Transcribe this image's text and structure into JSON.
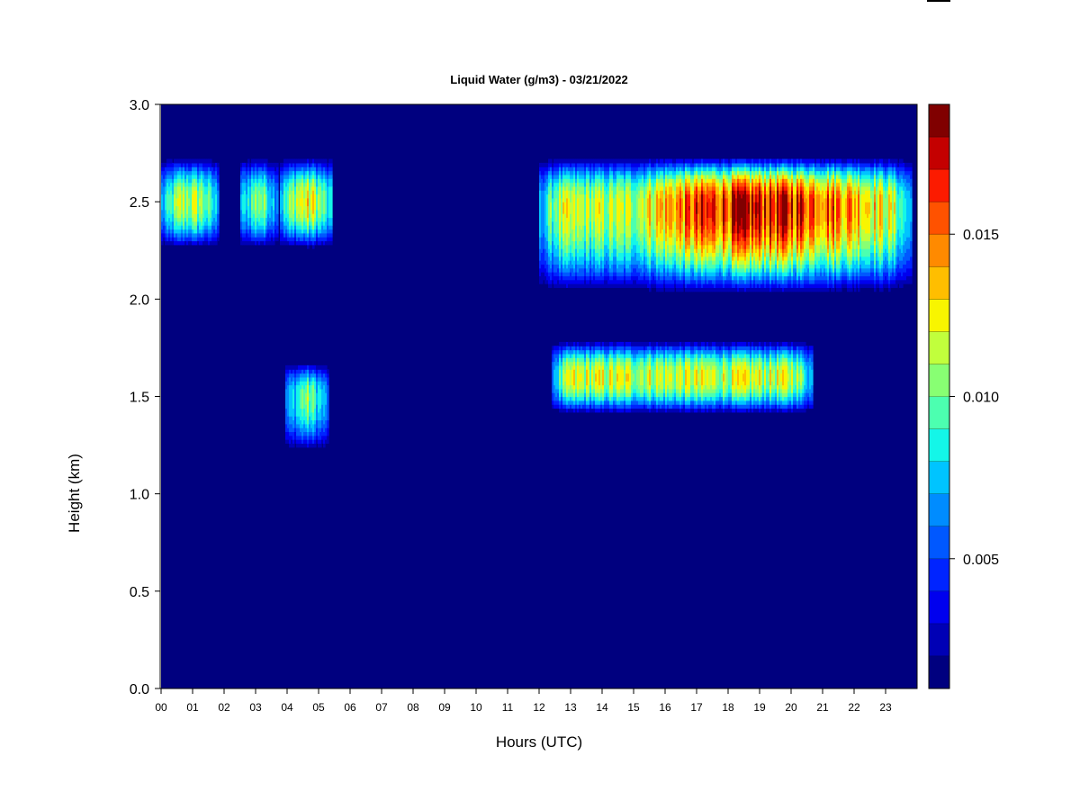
{
  "chart_data": {
    "type": "heatmap",
    "title": "Liquid Water (g/m3) - 03/21/2022",
    "xlabel": "Hours (UTC)",
    "ylabel": "Height (km)",
    "xlim": [
      0,
      24
    ],
    "ylim": [
      0.0,
      3.0
    ],
    "x_ticks": [
      "00",
      "01",
      "02",
      "03",
      "04",
      "05",
      "06",
      "07",
      "08",
      "09",
      "10",
      "11",
      "12",
      "13",
      "14",
      "15",
      "16",
      "17",
      "18",
      "19",
      "20",
      "21",
      "22",
      "23"
    ],
    "y_ticks": [
      "0.0",
      "0.5",
      "1.0",
      "1.5",
      "2.0",
      "2.5",
      "3.0"
    ],
    "colorbar": {
      "min": 0.001,
      "max": 0.019,
      "tick_values": [
        0.005,
        0.01,
        0.015
      ],
      "tick_labels": [
        "0.005",
        "0.010",
        "0.015"
      ],
      "colors": [
        "#00007f",
        "#0000b5",
        "#0000ee",
        "#0024ff",
        "#0058ff",
        "#008cff",
        "#00c4ff",
        "#14f6e8",
        "#4cffb0",
        "#88ff73",
        "#c1ff3c",
        "#f8f500",
        "#ffbe00",
        "#ff8a00",
        "#ff5200",
        "#fc1b00",
        "#c40000",
        "#800000"
      ]
    },
    "background_value": 0.0,
    "cloud_layers": [
      {
        "name": "upper-layer-early",
        "x_range": [
          0.0,
          1.85
        ],
        "base_km": 2.27,
        "top_km": 2.72,
        "peak_km": 2.5,
        "peak_value": 0.011
      },
      {
        "name": "upper-layer-early-strands",
        "x_range": [
          2.5,
          3.7
        ],
        "base_km": 2.27,
        "top_km": 2.72,
        "peak_km": 2.5,
        "peak_value": 0.011
      },
      {
        "name": "upper-layer-early-2",
        "x_range": [
          3.75,
          5.45
        ],
        "base_km": 2.27,
        "top_km": 2.72,
        "peak_km": 2.5,
        "peak_value": 0.012
      },
      {
        "name": "upper-layer-main",
        "x_range": [
          12.0,
          23.85
        ],
        "base_km": 2.05,
        "top_km": 2.72,
        "peak_km": 2.48,
        "peak_value": 0.0175,
        "core_x_range": [
          16.8,
          21.5
        ]
      },
      {
        "name": "lower-layer-early",
        "x_range": [
          3.95,
          5.3
        ],
        "base_km": 1.23,
        "top_km": 1.67,
        "peak_km": 1.5,
        "peak_value": 0.01
      },
      {
        "name": "lower-layer-main",
        "x_range": [
          12.4,
          20.7
        ],
        "base_km": 1.42,
        "top_km": 1.78,
        "peak_km": 1.6,
        "peak_value": 0.0115
      }
    ]
  }
}
